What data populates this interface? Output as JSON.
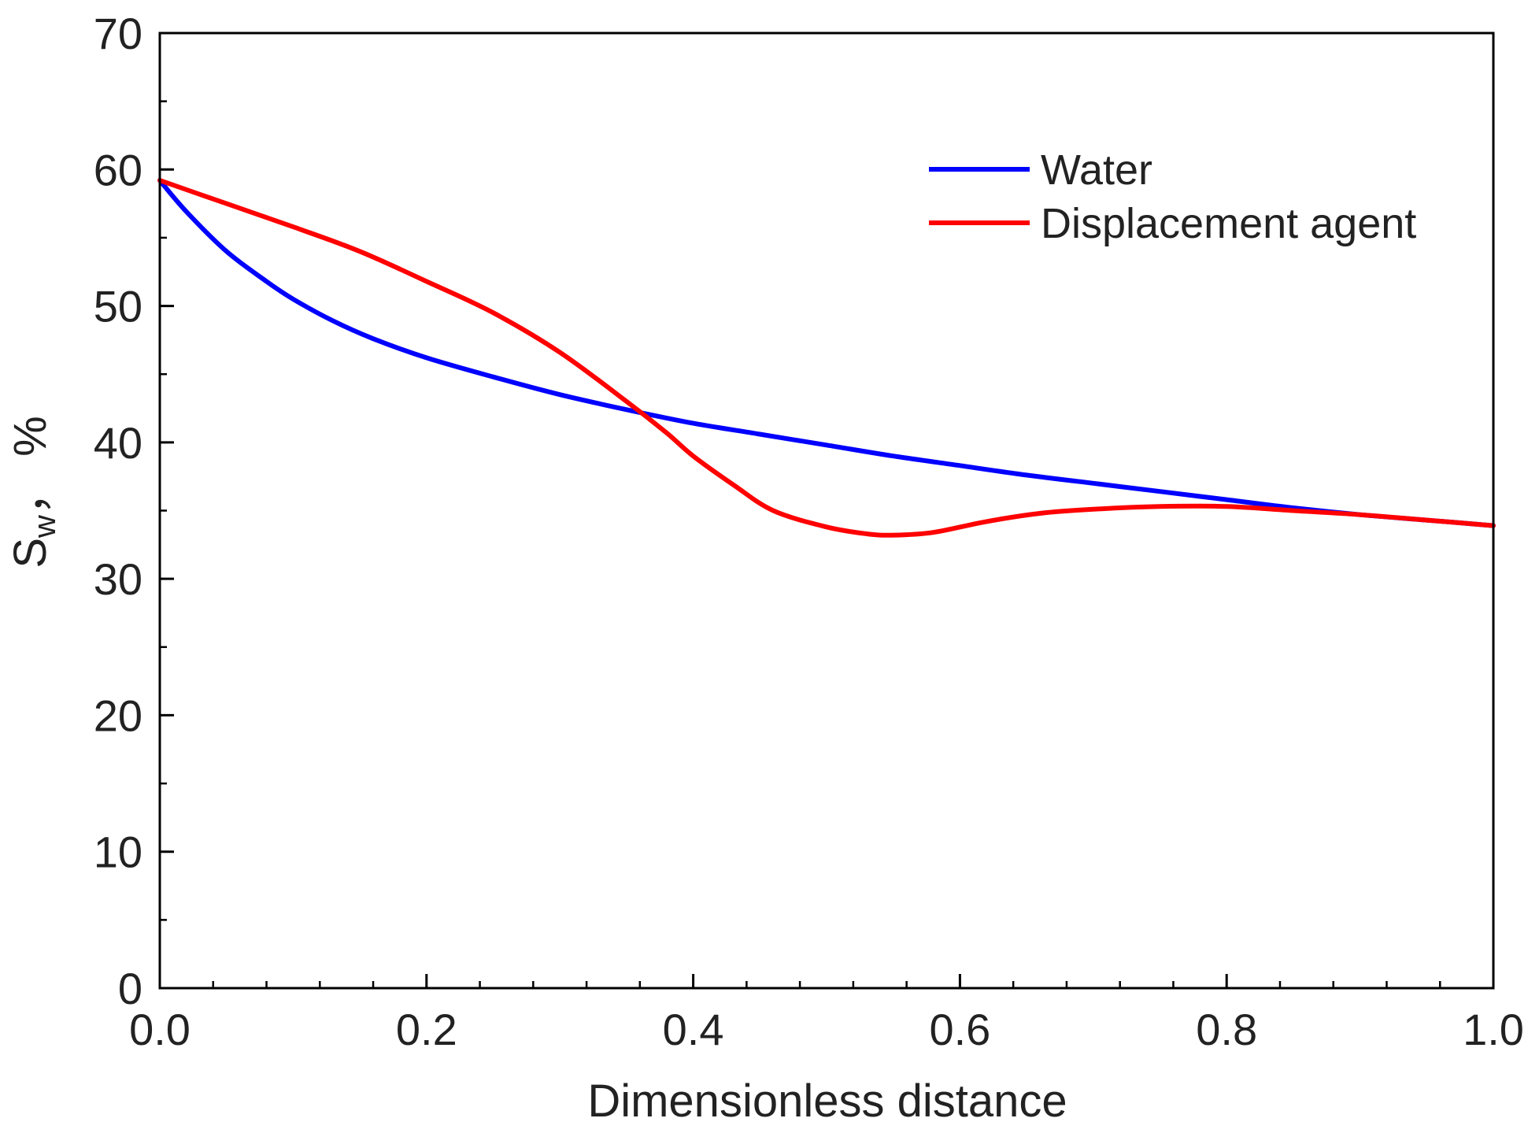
{
  "chart_data": {
    "type": "line",
    "title": "",
    "xlabel": "Dimensionless distance",
    "ylabel": {
      "main": "S",
      "sub": "w",
      "suffix": "，  %"
    },
    "xlim": [
      0.0,
      1.0
    ],
    "ylim": [
      0,
      70
    ],
    "x_major_ticks": [
      0.0,
      0.2,
      0.4,
      0.6,
      0.8,
      1.0
    ],
    "x_tick_labels": [
      "0.0",
      "0.2",
      "0.4",
      "0.6",
      "0.8",
      "1.0"
    ],
    "x_minor_step": 0.04,
    "y_major_ticks": [
      0,
      10,
      20,
      30,
      40,
      50,
      60,
      70
    ],
    "y_tick_labels": [
      "0",
      "10",
      "20",
      "30",
      "40",
      "50",
      "60",
      "70"
    ],
    "y_minor_step": 5,
    "grid": false,
    "legend_position": "top-right",
    "series": [
      {
        "name": "Water",
        "color": "#0000ff",
        "x": [
          0.0,
          0.02,
          0.05,
          0.08,
          0.1,
          0.13,
          0.16,
          0.2,
          0.25,
          0.3,
          0.35,
          0.4,
          0.45,
          0.5,
          0.55,
          0.6,
          0.65,
          0.7,
          0.75,
          0.8,
          0.85,
          0.9,
          0.95,
          1.0
        ],
        "y": [
          59.2,
          56.9,
          54.0,
          51.8,
          50.5,
          48.9,
          47.6,
          46.2,
          44.8,
          43.5,
          42.4,
          41.4,
          40.6,
          39.8,
          39.0,
          38.3,
          37.6,
          37.0,
          36.4,
          35.8,
          35.2,
          34.7,
          34.3,
          33.9
        ]
      },
      {
        "name": "Displacement agent",
        "color": "#ff0000",
        "x": [
          0.0,
          0.05,
          0.1,
          0.15,
          0.2,
          0.25,
          0.3,
          0.35,
          0.38,
          0.4,
          0.43,
          0.46,
          0.5,
          0.53,
          0.55,
          0.58,
          0.62,
          0.66,
          0.7,
          0.75,
          0.8,
          0.85,
          0.9,
          0.95,
          1.0
        ],
        "y": [
          59.2,
          57.5,
          55.8,
          54.0,
          51.8,
          49.5,
          46.6,
          43.0,
          40.7,
          39.0,
          36.9,
          35.0,
          33.8,
          33.3,
          33.2,
          33.4,
          34.2,
          34.8,
          35.1,
          35.3,
          35.3,
          35.0,
          34.7,
          34.3,
          33.9
        ]
      }
    ]
  }
}
